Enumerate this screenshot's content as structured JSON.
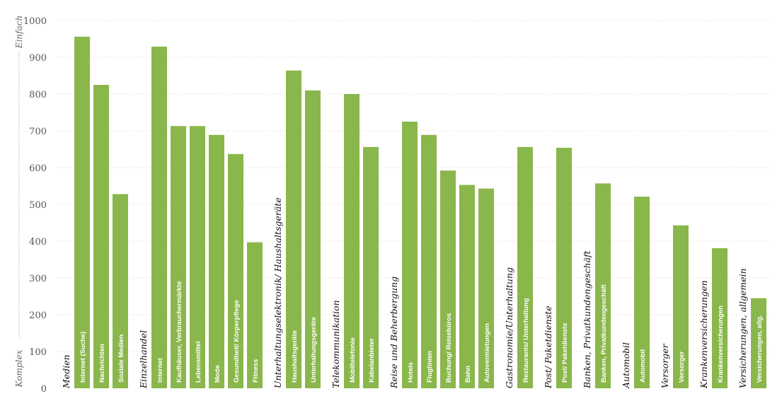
{
  "chart_data": {
    "type": "bar",
    "title": "",
    "xlabel": "",
    "ylabel": "",
    "ylim": [
      0,
      1000
    ],
    "yticks": [
      0,
      100,
      200,
      300,
      400,
      500,
      600,
      700,
      800,
      900,
      1000
    ],
    "scale_low_label": "Komplex",
    "scale_high_label": "Einfach",
    "bar_color": "#8ab74b",
    "grid": true,
    "groups": [
      {
        "name": "Medien",
        "bars": [
          {
            "label": "Internet (Suche)",
            "value": 956
          },
          {
            "label": "Nachrichten",
            "value": 825
          },
          {
            "label": "Soziale Medien",
            "value": 528
          }
        ]
      },
      {
        "name": "Einzelhandel",
        "bars": [
          {
            "label": "Internet",
            "value": 929
          },
          {
            "label": "Kaufhäuser, Verbrauchermärkte",
            "value": 713
          },
          {
            "label": "Lebensmittel",
            "value": 713
          },
          {
            "label": "Mode",
            "value": 689
          },
          {
            "label": "Gesundheit/ Körperpflege",
            "value": 637
          },
          {
            "label": "Fitness",
            "value": 397
          }
        ]
      },
      {
        "name": "Unterhaltungselektronik/ Haushaltsgeräte",
        "bars": [
          {
            "label": "Haushaltsgeräte",
            "value": 864
          },
          {
            "label": "Unterhaltungsgeräte",
            "value": 810
          }
        ]
      },
      {
        "name": "Telekommunikation",
        "bars": [
          {
            "label": "Mobiltelefonie",
            "value": 800
          },
          {
            "label": "Kabelanbieter",
            "value": 656
          }
        ]
      },
      {
        "name": "Reise und Beherbergung",
        "bars": [
          {
            "label": "Hotels",
            "value": 725
          },
          {
            "label": "Fluglinien",
            "value": 689
          },
          {
            "label": "Buchung/ Reisebüros",
            "value": 592
          },
          {
            "label": "Bahn",
            "value": 553
          },
          {
            "label": "Autovermietungen",
            "value": 543
          }
        ]
      },
      {
        "name": "Gastronomie/Unterhaltung",
        "bars": [
          {
            "label": "Restaurants/ Unterhaltung",
            "value": 656
          }
        ]
      },
      {
        "name": "Post/ Paketdienste",
        "bars": [
          {
            "label": "Post/ Paketdienste",
            "value": 654
          }
        ]
      },
      {
        "name": "Banken, Privatkundengeschäft",
        "bars": [
          {
            "label": "Banken, Privatkundengeschäft",
            "value": 557
          }
        ]
      },
      {
        "name": "Automobil",
        "bars": [
          {
            "label": "Automobil",
            "value": 521
          }
        ]
      },
      {
        "name": "Versorger",
        "bars": [
          {
            "label": "Versorger",
            "value": 443
          }
        ]
      },
      {
        "name": "Krankenversicherungen",
        "bars": [
          {
            "label": "Krankenversicherungen",
            "value": 381
          }
        ]
      },
      {
        "name": "Versicherungen, allgemein",
        "bars": [
          {
            "label": "Versicherungen, allg.",
            "value": 245
          }
        ]
      }
    ]
  }
}
